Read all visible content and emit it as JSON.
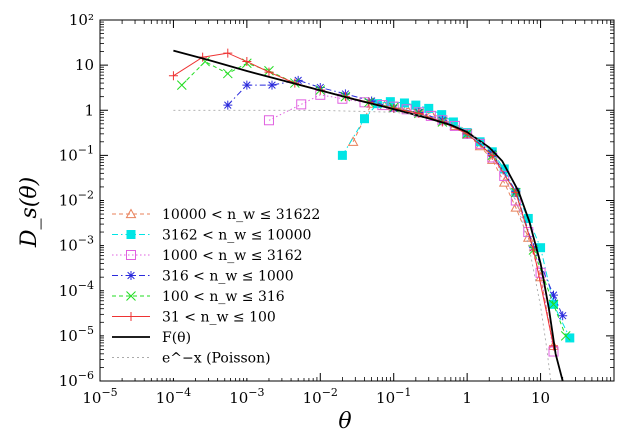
{
  "chart_data": {
    "type": "scatter",
    "xlabel": "θ",
    "ylabel": "D_s(θ)",
    "xscale": "log",
    "yscale": "log",
    "xlim": [
      1e-05,
      100
    ],
    "ylim": [
      1e-06,
      100
    ],
    "x_ticks": [
      {
        "value": 1e-05,
        "label": "10−5"
      },
      {
        "value": 0.0001,
        "label": "10−4"
      },
      {
        "value": 0.001,
        "label": "10−3"
      },
      {
        "value": 0.01,
        "label": "10−2"
      },
      {
        "value": 0.1,
        "label": "10−1"
      },
      {
        "value": 1,
        "label": "1"
      },
      {
        "value": 10,
        "label": "10"
      }
    ],
    "y_ticks": [
      {
        "value": 100,
        "label": "10²"
      },
      {
        "value": 10,
        "label": "10"
      },
      {
        "value": 1,
        "label": "1"
      },
      {
        "value": 0.1,
        "label": "10−1"
      },
      {
        "value": 0.01,
        "label": "10−2"
      },
      {
        "value": 0.001,
        "label": "10−3"
      },
      {
        "value": 0.0001,
        "label": "10−4"
      },
      {
        "value": 1e-05,
        "label": "10−5"
      },
      {
        "value": 1e-06,
        "label": "10−6"
      }
    ],
    "grid": false,
    "legend_position": "bottom-left",
    "series": [
      {
        "name": "10000 < n_w ≤ 31622",
        "legend": "10000 < n_w ≤ 31622",
        "color": "#e8805a",
        "marker": "triangle",
        "line": "dashed",
        "x": [
          0.028,
          0.05,
          0.075,
          0.1,
          0.15,
          0.22,
          0.32,
          0.46,
          0.68,
          1.0,
          1.5,
          2.2,
          3.2,
          4.6,
          6.8,
          10,
          15
        ],
        "y": [
          0.2,
          1.4,
          1.25,
          1.15,
          1.1,
          1.0,
          0.85,
          0.65,
          0.45,
          0.3,
          0.16,
          0.08,
          0.025,
          0.007,
          0.0015,
          0.0002,
          6e-06
        ]
      },
      {
        "name": "3162 < n_w ≤ 10000",
        "legend": "3162 < n_w ≤ 10000",
        "color": "#00e5e5",
        "marker": "filled-square",
        "line": "dash-dot",
        "x": [
          0.02,
          0.04,
          0.06,
          0.09,
          0.14,
          0.2,
          0.3,
          0.45,
          0.65,
          1.0,
          1.5,
          2.2,
          3.2,
          4.6,
          6.8,
          10,
          15,
          25
        ],
        "y": [
          0.1,
          0.65,
          1.4,
          1.55,
          1.45,
          1.3,
          1.1,
          0.8,
          0.55,
          0.32,
          0.2,
          0.12,
          0.05,
          0.015,
          0.004,
          0.0009,
          5e-05,
          9e-06
        ]
      },
      {
        "name": "1000 < n_w ≤ 3162",
        "legend": "1000 < n_w ≤ 3162",
        "color": "#e060e0",
        "marker": "open-square",
        "line": "dotted",
        "x": [
          0.002,
          0.0055,
          0.01,
          0.02,
          0.04,
          0.07,
          0.1,
          0.15,
          0.22,
          0.32,
          0.46,
          0.68,
          1.0,
          1.5,
          2.2,
          3.2,
          4.6,
          6.8,
          10,
          15
        ],
        "y": [
          0.6,
          1.35,
          2.2,
          1.8,
          1.5,
          1.3,
          1.2,
          1.05,
          0.9,
          0.75,
          0.6,
          0.45,
          0.3,
          0.18,
          0.09,
          0.035,
          0.01,
          0.002,
          0.00025,
          4.5e-06
        ]
      },
      {
        "name": "316 < n_w ≤ 1000",
        "legend": "316 < n_w ≤ 1000",
        "color": "#2a2adc",
        "marker": "asterisk",
        "line": "dash-dot",
        "x": [
          0.00055,
          0.001,
          0.0022,
          0.005,
          0.01,
          0.022,
          0.05,
          0.1,
          0.22,
          0.46,
          1.0,
          2.2,
          4.6,
          8,
          15,
          20
        ],
        "y": [
          1.3,
          3.6,
          3.6,
          4.6,
          3.2,
          2.3,
          1.6,
          1.1,
          0.9,
          0.6,
          0.3,
          0.11,
          0.016,
          0.0009,
          8e-05,
          2.8e-05
        ]
      },
      {
        "name": "100 < n_w ≤ 316",
        "legend": "100 < n_w ≤ 316",
        "color": "#22dd22",
        "marker": "cross",
        "line": "dashed",
        "x": [
          0.00013,
          0.00027,
          0.00055,
          0.001,
          0.002,
          0.0045,
          0.01,
          0.022,
          0.046,
          0.1,
          0.22,
          0.46,
          1.0,
          2.2,
          4.6,
          8,
          15,
          22
        ],
        "y": [
          3.6,
          12,
          6.5,
          11,
          7.5,
          4.0,
          2.8,
          2.0,
          1.5,
          1.15,
          0.85,
          0.55,
          0.3,
          0.1,
          0.015,
          0.0008,
          5e-05,
          1e-05
        ]
      },
      {
        "name": "31 < n_w ≤ 100",
        "legend": "31 < n_w ≤ 100",
        "color": "#ee3333",
        "marker": "plus",
        "line": "solid",
        "x": [
          0.0001,
          0.00025,
          0.00055,
          0.001,
          0.002,
          0.0045,
          0.01,
          0.022,
          0.046,
          0.1,
          0.22,
          0.46,
          1.0,
          2.2,
          4.6,
          8,
          15
        ],
        "y": [
          5.8,
          15,
          18.5,
          12,
          7,
          4,
          2.8,
          2.0,
          1.5,
          1.1,
          0.85,
          0.55,
          0.3,
          0.1,
          0.015,
          0.0008,
          6e-06
        ]
      },
      {
        "name": "F(θ)",
        "legend": "F(θ)",
        "color": "#000000",
        "marker": "none",
        "line": "solid-thick",
        "x": [
          0.0001,
          0.0003,
          0.001,
          0.003,
          0.01,
          0.03,
          0.1,
          0.3,
          0.6,
          1.0,
          2.0,
          3.0,
          5.0,
          7.0,
          10,
          13,
          16,
          20
        ],
        "y": [
          21,
          13,
          7.4,
          4.6,
          2.75,
          1.72,
          1.06,
          0.66,
          0.47,
          0.33,
          0.15,
          0.075,
          0.016,
          0.0035,
          0.0004,
          4e-05,
          4e-06,
          1e-06
        ]
      },
      {
        "name": "e^−x (Poisson)",
        "legend": "e^−x (Poisson)",
        "color": "#aaaaaa",
        "marker": "none",
        "line": "dotted-thin",
        "x": [
          0.0001,
          0.001,
          0.01,
          0.1,
          0.3,
          0.6,
          1.0,
          2.0,
          3.0,
          5.0,
          7.0,
          10,
          12,
          13.8
        ],
        "y": [
          1.0,
          1.0,
          0.99,
          0.905,
          0.74,
          0.55,
          0.368,
          0.135,
          0.05,
          0.0067,
          0.0009,
          4.5e-05,
          6e-06,
          1e-06
        ]
      }
    ]
  }
}
